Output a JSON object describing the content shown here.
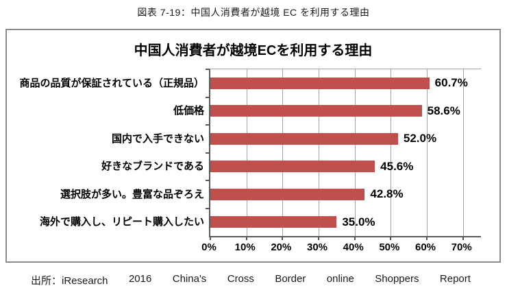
{
  "figure": {
    "caption": "図表 7-19：中国人消費者が越境 EC を利用する理由"
  },
  "chart_data": {
    "type": "bar",
    "orientation": "horizontal",
    "title": "中国人消費者が越境ECを利用する理由",
    "categories": [
      "商品の品質が保証されている（正規品）",
      "低価格",
      "国内で入手できない",
      "好きなブランドである",
      "選択肢が多い。豊富な品ぞろえ",
      "海外で購入し、リピート購入したい"
    ],
    "values": [
      60.7,
      58.6,
      52.0,
      45.6,
      42.8,
      35.0
    ],
    "value_labels": [
      "60.7%",
      "58.6%",
      "52.0%",
      "45.6%",
      "42.8%",
      "35.0%"
    ],
    "x_tick_values": [
      0,
      10,
      20,
      30,
      40,
      50,
      60,
      70
    ],
    "x_tick_labels": [
      "0%",
      "10%",
      "20%",
      "30%",
      "40%",
      "50%",
      "60%",
      "70%"
    ],
    "xlim": [
      0,
      75
    ],
    "grid": true,
    "legend": false,
    "bar_color": "#c0504d",
    "gridline_color": "#a5a5a5",
    "axis_color": "#595959"
  },
  "source": {
    "words": [
      "出所：iResearch",
      "2016",
      "China's",
      "Cross",
      "Border",
      "online",
      "Shoppers",
      "Report"
    ],
    "full_text": "出所：iResearch 2016 China's Cross Border online Shoppers Report"
  }
}
